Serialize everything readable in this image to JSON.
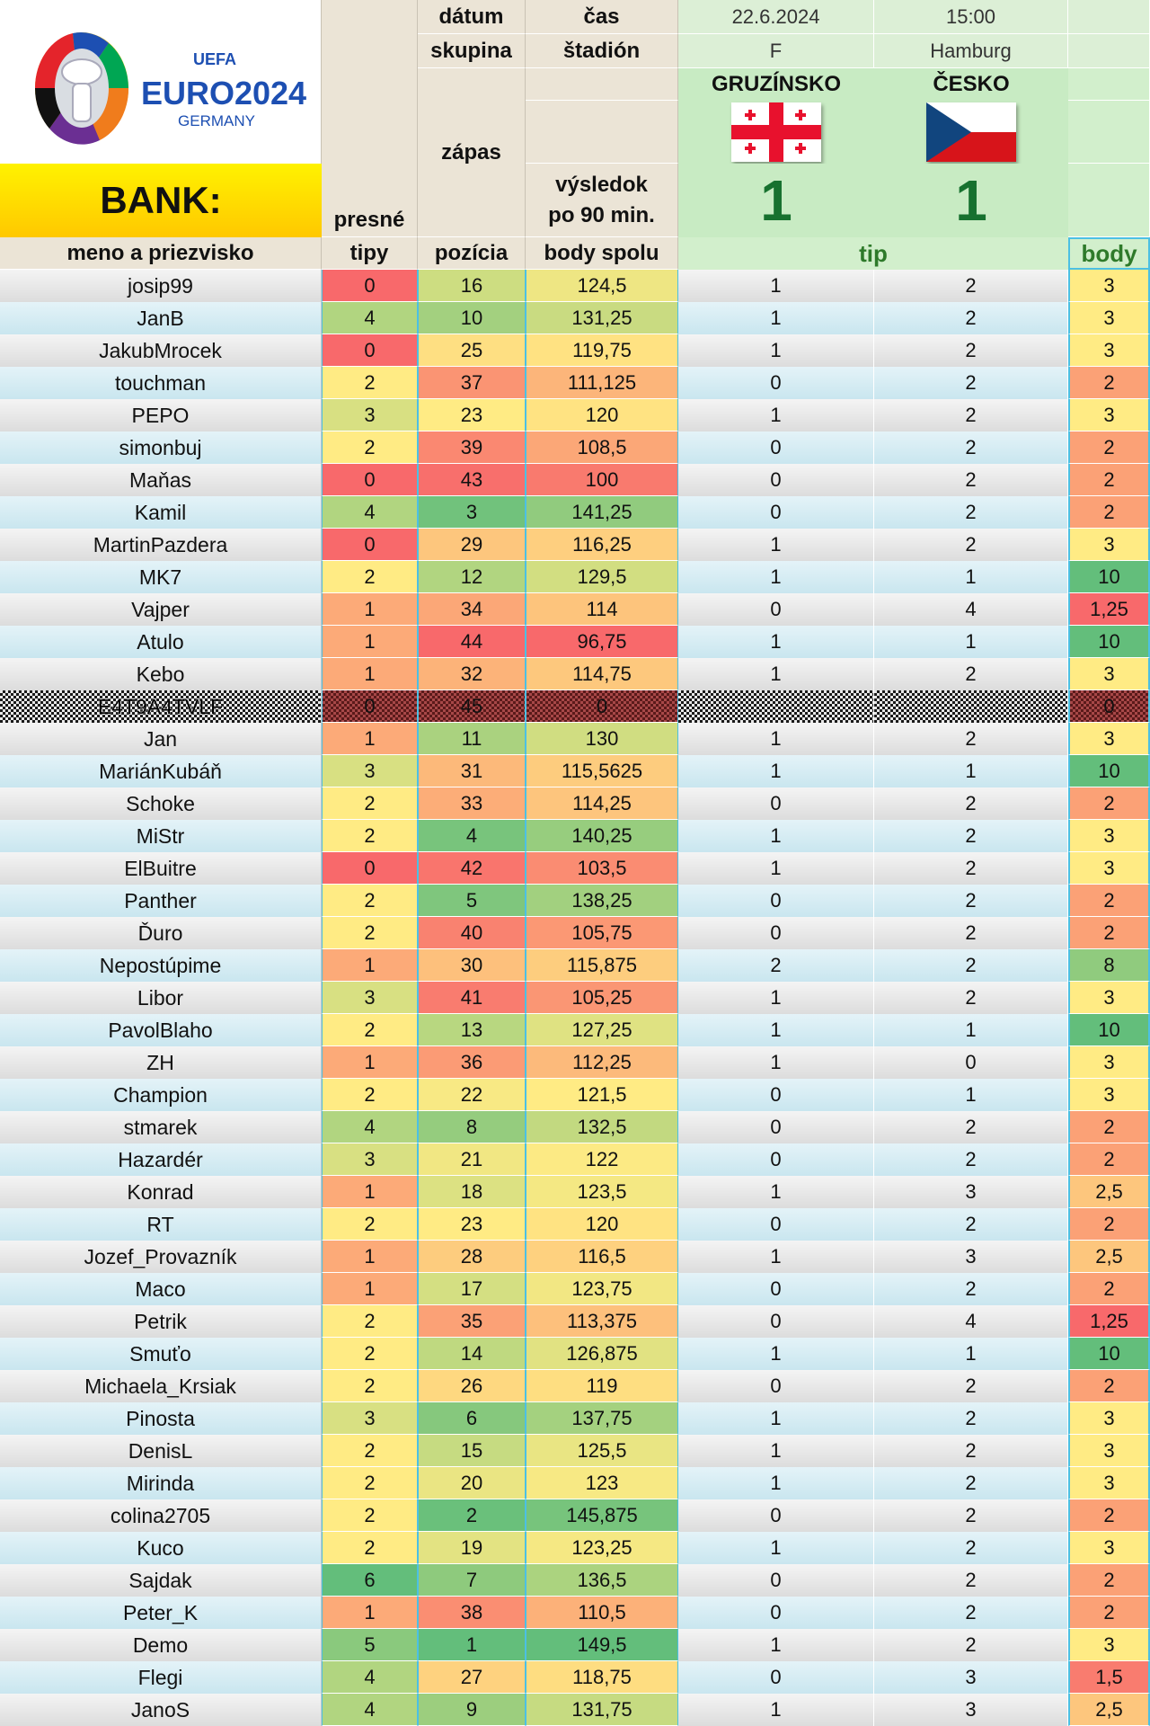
{
  "logo": {
    "uefa": "UEFA",
    "euro": "EURO2024",
    "country": "GERMANY"
  },
  "header": {
    "bank_label": "BANK:",
    "datum_label": "dátum",
    "cas_label": "čas",
    "skupina_label": "skupina",
    "stadion_label": "štadión",
    "zapas_label": "zápas",
    "vysledok_label_1": "výsledok",
    "vysledok_label_2": "po 90 min.",
    "presne_label": "presné",
    "tipy_label": "tipy",
    "meno_label": "meno a priezvisko",
    "pozicia_label": "pozícia",
    "body_spolu_label": "body spolu",
    "tip_label": "tip",
    "body_label": "body"
  },
  "match": {
    "date": "22.6.2024",
    "time": "15:00",
    "group": "F",
    "stadium": "Hamburg",
    "home_team": "GRUZÍNSKO",
    "away_team": "ČESKO",
    "home_score": "1",
    "away_score": "1"
  },
  "colors": {
    "best": "#63be7b",
    "mid": "#ffeb84",
    "worst": "#f8696b",
    "score_green": "#17712f",
    "accent_border": "#4cc0e3"
  },
  "rows": [
    {
      "name": "josip99",
      "presne": "0",
      "pozicia": "16",
      "body_spolu": "124,5",
      "tip1": "1",
      "tip2": "2",
      "body": "3"
    },
    {
      "name": "JanB",
      "presne": "4",
      "pozicia": "10",
      "body_spolu": "131,25",
      "tip1": "1",
      "tip2": "2",
      "body": "3"
    },
    {
      "name": "JakubMrocek",
      "presne": "0",
      "pozicia": "25",
      "body_spolu": "119,75",
      "tip1": "1",
      "tip2": "2",
      "body": "3"
    },
    {
      "name": "touchman",
      "presne": "2",
      "pozicia": "37",
      "body_spolu": "111,125",
      "tip1": "0",
      "tip2": "2",
      "body": "2"
    },
    {
      "name": "PEPO",
      "presne": "3",
      "pozicia": "23",
      "body_spolu": "120",
      "tip1": "1",
      "tip2": "2",
      "body": "3"
    },
    {
      "name": "simonbuj",
      "presne": "2",
      "pozicia": "39",
      "body_spolu": "108,5",
      "tip1": "0",
      "tip2": "2",
      "body": "2"
    },
    {
      "name": "Maňas",
      "presne": "0",
      "pozicia": "43",
      "body_spolu": "100",
      "tip1": "0",
      "tip2": "2",
      "body": "2"
    },
    {
      "name": "Kamil",
      "presne": "4",
      "pozicia": "3",
      "body_spolu": "141,25",
      "tip1": "0",
      "tip2": "2",
      "body": "2"
    },
    {
      "name": "MartinPazdera",
      "presne": "0",
      "pozicia": "29",
      "body_spolu": "116,25",
      "tip1": "1",
      "tip2": "2",
      "body": "3"
    },
    {
      "name": "MK7",
      "presne": "2",
      "pozicia": "12",
      "body_spolu": "129,5",
      "tip1": "1",
      "tip2": "1",
      "body": "10"
    },
    {
      "name": "Vajper",
      "presne": "1",
      "pozicia": "34",
      "body_spolu": "114",
      "tip1": "0",
      "tip2": "4",
      "body": "1,25"
    },
    {
      "name": "Atulo",
      "presne": "1",
      "pozicia": "44",
      "body_spolu": "96,75",
      "tip1": "1",
      "tip2": "1",
      "body": "10"
    },
    {
      "name": "Kebo",
      "presne": "1",
      "pozicia": "32",
      "body_spolu": "114,75",
      "tip1": "1",
      "tip2": "2",
      "body": "3"
    },
    {
      "name": "E4T9A4TVLF",
      "presne": "0",
      "pozicia": "45",
      "body_spolu": "0",
      "tip1": "",
      "tip2": "",
      "body": "0",
      "disabled": true
    },
    {
      "name": "Jan",
      "presne": "1",
      "pozicia": "11",
      "body_spolu": "130",
      "tip1": "1",
      "tip2": "2",
      "body": "3"
    },
    {
      "name": "MariánKubáň",
      "presne": "3",
      "pozicia": "31",
      "body_spolu": "115,5625",
      "tip1": "1",
      "tip2": "1",
      "body": "10"
    },
    {
      "name": "Schoke",
      "presne": "2",
      "pozicia": "33",
      "body_spolu": "114,25",
      "tip1": "0",
      "tip2": "2",
      "body": "2"
    },
    {
      "name": "MiStr",
      "presne": "2",
      "pozicia": "4",
      "body_spolu": "140,25",
      "tip1": "1",
      "tip2": "2",
      "body": "3"
    },
    {
      "name": "ElBuitre",
      "presne": "0",
      "pozicia": "42",
      "body_spolu": "103,5",
      "tip1": "1",
      "tip2": "2",
      "body": "3"
    },
    {
      "name": "Panther",
      "presne": "2",
      "pozicia": "5",
      "body_spolu": "138,25",
      "tip1": "0",
      "tip2": "2",
      "body": "2"
    },
    {
      "name": "Ďuro",
      "presne": "2",
      "pozicia": "40",
      "body_spolu": "105,75",
      "tip1": "0",
      "tip2": "2",
      "body": "2"
    },
    {
      "name": "Nepostúpime",
      "presne": "1",
      "pozicia": "30",
      "body_spolu": "115,875",
      "tip1": "2",
      "tip2": "2",
      "body": "8"
    },
    {
      "name": "Libor",
      "presne": "3",
      "pozicia": "41",
      "body_spolu": "105,25",
      "tip1": "1",
      "tip2": "2",
      "body": "3"
    },
    {
      "name": "PavolBlaho",
      "presne": "2",
      "pozicia": "13",
      "body_spolu": "127,25",
      "tip1": "1",
      "tip2": "1",
      "body": "10"
    },
    {
      "name": "ZH",
      "presne": "1",
      "pozicia": "36",
      "body_spolu": "112,25",
      "tip1": "1",
      "tip2": "0",
      "body": "3"
    },
    {
      "name": "Champion",
      "presne": "2",
      "pozicia": "22",
      "body_spolu": "121,5",
      "tip1": "0",
      "tip2": "1",
      "body": "3"
    },
    {
      "name": "stmarek",
      "presne": "4",
      "pozicia": "8",
      "body_spolu": "132,5",
      "tip1": "0",
      "tip2": "2",
      "body": "2"
    },
    {
      "name": "Hazardér",
      "presne": "3",
      "pozicia": "21",
      "body_spolu": "122",
      "tip1": "0",
      "tip2": "2",
      "body": "2"
    },
    {
      "name": "Konrad",
      "presne": "1",
      "pozicia": "18",
      "body_spolu": "123,5",
      "tip1": "1",
      "tip2": "3",
      "body": "2,5"
    },
    {
      "name": "RT",
      "presne": "2",
      "pozicia": "23",
      "body_spolu": "120",
      "tip1": "0",
      "tip2": "2",
      "body": "2"
    },
    {
      "name": "Jozef_Provazník",
      "presne": "1",
      "pozicia": "28",
      "body_spolu": "116,5",
      "tip1": "1",
      "tip2": "3",
      "body": "2,5"
    },
    {
      "name": "Maco",
      "presne": "1",
      "pozicia": "17",
      "body_spolu": "123,75",
      "tip1": "0",
      "tip2": "2",
      "body": "2"
    },
    {
      "name": "Petrik",
      "presne": "2",
      "pozicia": "35",
      "body_spolu": "113,375",
      "tip1": "0",
      "tip2": "4",
      "body": "1,25"
    },
    {
      "name": "Smuťo",
      "presne": "2",
      "pozicia": "14",
      "body_spolu": "126,875",
      "tip1": "1",
      "tip2": "1",
      "body": "10"
    },
    {
      "name": "Michaela_Krsiak",
      "presne": "2",
      "pozicia": "26",
      "body_spolu": "119",
      "tip1": "0",
      "tip2": "2",
      "body": "2"
    },
    {
      "name": "Pinosta",
      "presne": "3",
      "pozicia": "6",
      "body_spolu": "137,75",
      "tip1": "1",
      "tip2": "2",
      "body": "3"
    },
    {
      "name": "DenisL",
      "presne": "2",
      "pozicia": "15",
      "body_spolu": "125,5",
      "tip1": "1",
      "tip2": "2",
      "body": "3"
    },
    {
      "name": "Mirinda",
      "presne": "2",
      "pozicia": "20",
      "body_spolu": "123",
      "tip1": "1",
      "tip2": "2",
      "body": "3"
    },
    {
      "name": "colina2705",
      "presne": "2",
      "pozicia": "2",
      "body_spolu": "145,875",
      "tip1": "0",
      "tip2": "2",
      "body": "2"
    },
    {
      "name": "Kuco",
      "presne": "2",
      "pozicia": "19",
      "body_spolu": "123,25",
      "tip1": "1",
      "tip2": "2",
      "body": "3"
    },
    {
      "name": "Sajdak",
      "presne": "6",
      "pozicia": "7",
      "body_spolu": "136,5",
      "tip1": "0",
      "tip2": "2",
      "body": "2"
    },
    {
      "name": "Peter_K",
      "presne": "1",
      "pozicia": "38",
      "body_spolu": "110,5",
      "tip1": "0",
      "tip2": "2",
      "body": "2"
    },
    {
      "name": "Demo",
      "presne": "5",
      "pozicia": "1",
      "body_spolu": "149,5",
      "tip1": "1",
      "tip2": "2",
      "body": "3"
    },
    {
      "name": "Flegi",
      "presne": "4",
      "pozicia": "27",
      "body_spolu": "118,75",
      "tip1": "0",
      "tip2": "3",
      "body": "1,5"
    },
    {
      "name": "JanoS",
      "presne": "4",
      "pozicia": "9",
      "body_spolu": "131,75",
      "tip1": "1",
      "tip2": "3",
      "body": "2,5"
    }
  ]
}
